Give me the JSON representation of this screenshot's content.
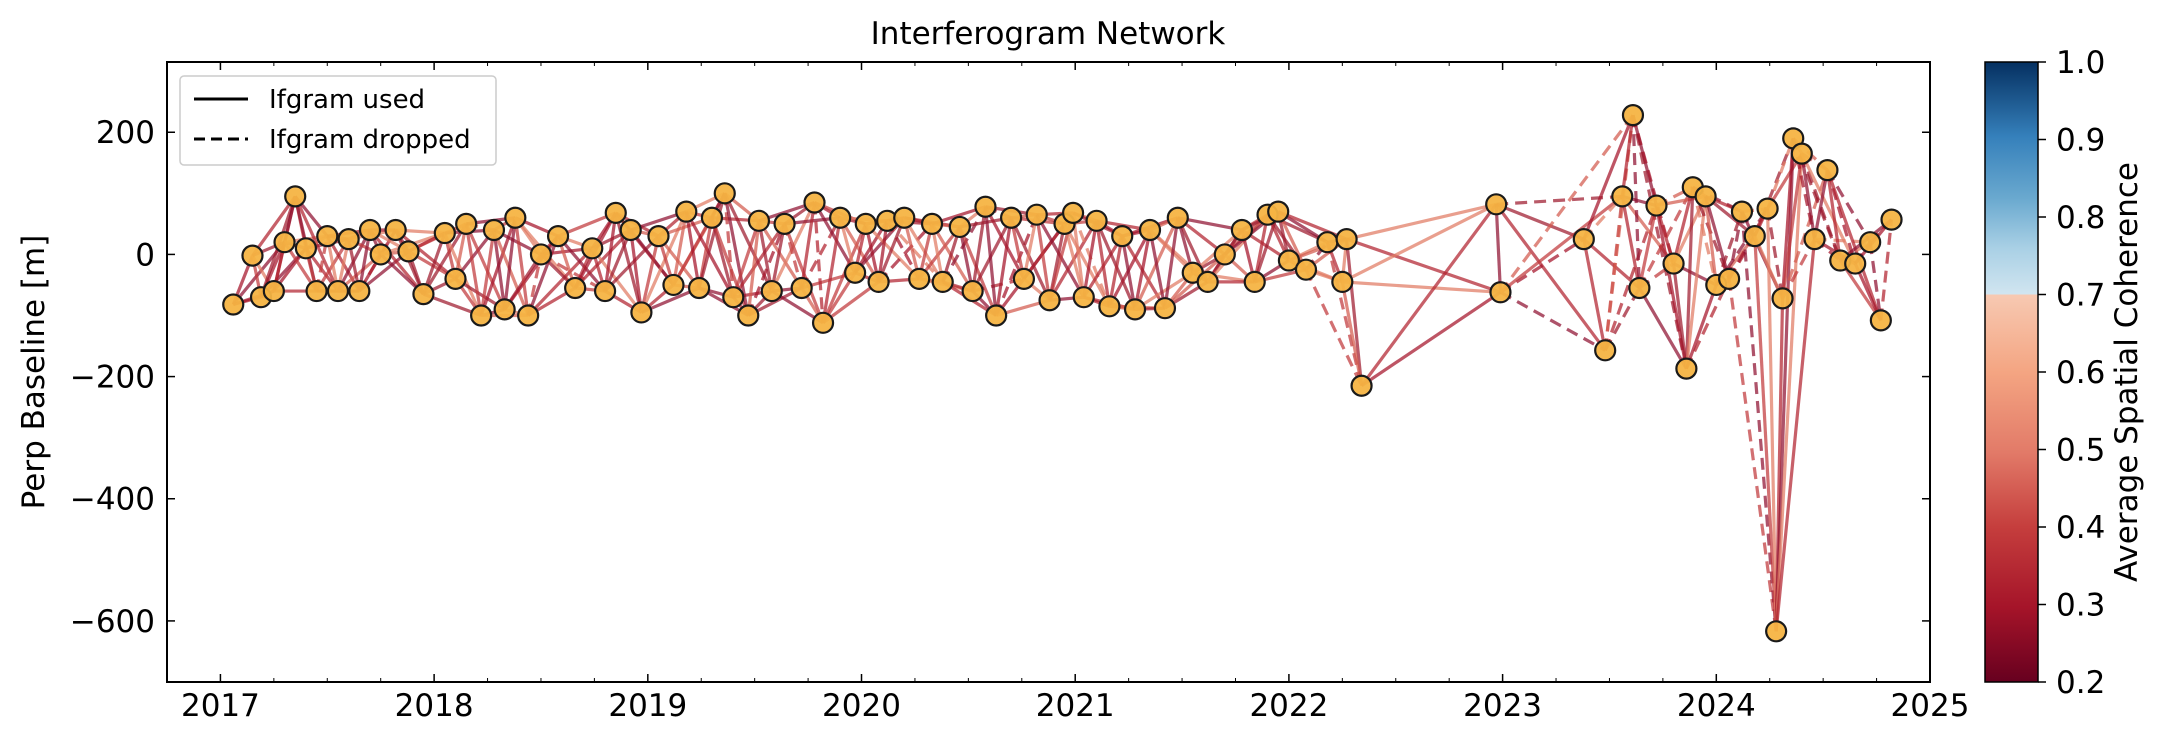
{
  "chart_data": {
    "type": "network",
    "title": "Interferogram Network",
    "xlabel": "",
    "ylabel": "Perp Baseline [m]",
    "xlim": [
      2016.75,
      2025.0
    ],
    "ylim": [
      -700,
      315
    ],
    "x_ticks": [
      2017,
      2018,
      2019,
      2020,
      2021,
      2022,
      2023,
      2024,
      2025
    ],
    "y_ticks": [
      200,
      0,
      -200,
      -400,
      -600
    ],
    "y_tick_labels": [
      "200",
      "0",
      "−200",
      "−400",
      "−600"
    ],
    "legend": {
      "position": "top-left",
      "entries": [
        {
          "label": "Ifgram used",
          "style": "solid"
        },
        {
          "label": "Ifgram dropped",
          "style": "dashed"
        }
      ]
    },
    "colorbar": {
      "label": "Average Spatial Coherence",
      "range": [
        0.2,
        1.0
      ],
      "ticks": [
        "1.0",
        "0.9",
        "0.8",
        "0.7",
        "0.6",
        "0.5",
        "0.4",
        "0.3",
        "0.2"
      ],
      "colormap": "RdBu",
      "visible_range": [
        0.2,
        0.7
      ]
    },
    "node_color": "#f6b443",
    "acquisitions": [
      {
        "x": 2017.06,
        "y": -82
      },
      {
        "x": 2017.15,
        "y": -2
      },
      {
        "x": 2017.19,
        "y": -70
      },
      {
        "x": 2017.25,
        "y": -60
      },
      {
        "x": 2017.3,
        "y": 20
      },
      {
        "x": 2017.35,
        "y": 95
      },
      {
        "x": 2017.4,
        "y": 10
      },
      {
        "x": 2017.45,
        "y": -60
      },
      {
        "x": 2017.5,
        "y": 30
      },
      {
        "x": 2017.55,
        "y": -60
      },
      {
        "x": 2017.6,
        "y": 25
      },
      {
        "x": 2017.65,
        "y": -60
      },
      {
        "x": 2017.7,
        "y": 40
      },
      {
        "x": 2017.75,
        "y": 0
      },
      {
        "x": 2017.82,
        "y": 40
      },
      {
        "x": 2017.88,
        "y": 5
      },
      {
        "x": 2017.95,
        "y": -65
      },
      {
        "x": 2018.05,
        "y": 35
      },
      {
        "x": 2018.1,
        "y": -40
      },
      {
        "x": 2018.15,
        "y": 50
      },
      {
        "x": 2018.22,
        "y": -100
      },
      {
        "x": 2018.28,
        "y": 40
      },
      {
        "x": 2018.33,
        "y": -90
      },
      {
        "x": 2018.38,
        "y": 60
      },
      {
        "x": 2018.44,
        "y": -100
      },
      {
        "x": 2018.5,
        "y": 0
      },
      {
        "x": 2018.58,
        "y": 30
      },
      {
        "x": 2018.66,
        "y": -55
      },
      {
        "x": 2018.74,
        "y": 10
      },
      {
        "x": 2018.8,
        "y": -60
      },
      {
        "x": 2018.85,
        "y": 68
      },
      {
        "x": 2018.92,
        "y": 40
      },
      {
        "x": 2018.97,
        "y": -95
      },
      {
        "x": 2019.05,
        "y": 30
      },
      {
        "x": 2019.12,
        "y": -50
      },
      {
        "x": 2019.18,
        "y": 70
      },
      {
        "x": 2019.24,
        "y": -55
      },
      {
        "x": 2019.3,
        "y": 60
      },
      {
        "x": 2019.36,
        "y": 100
      },
      {
        "x": 2019.4,
        "y": -70
      },
      {
        "x": 2019.47,
        "y": -100
      },
      {
        "x": 2019.52,
        "y": 55
      },
      {
        "x": 2019.58,
        "y": -60
      },
      {
        "x": 2019.64,
        "y": 50
      },
      {
        "x": 2019.72,
        "y": -55
      },
      {
        "x": 2019.78,
        "y": 85
      },
      {
        "x": 2019.82,
        "y": -112
      },
      {
        "x": 2019.9,
        "y": 60
      },
      {
        "x": 2019.97,
        "y": -30
      },
      {
        "x": 2020.02,
        "y": 50
      },
      {
        "x": 2020.08,
        "y": -45
      },
      {
        "x": 2020.12,
        "y": 55
      },
      {
        "x": 2020.2,
        "y": 60
      },
      {
        "x": 2020.27,
        "y": -40
      },
      {
        "x": 2020.33,
        "y": 50
      },
      {
        "x": 2020.38,
        "y": -45
      },
      {
        "x": 2020.46,
        "y": 45
      },
      {
        "x": 2020.52,
        "y": -60
      },
      {
        "x": 2020.58,
        "y": 78
      },
      {
        "x": 2020.63,
        "y": -100
      },
      {
        "x": 2020.7,
        "y": 60
      },
      {
        "x": 2020.76,
        "y": -40
      },
      {
        "x": 2020.82,
        "y": 65
      },
      {
        "x": 2020.88,
        "y": -75
      },
      {
        "x": 2020.95,
        "y": 50
      },
      {
        "x": 2020.99,
        "y": 68
      },
      {
        "x": 2021.04,
        "y": -70
      },
      {
        "x": 2021.1,
        "y": 55
      },
      {
        "x": 2021.16,
        "y": -85
      },
      {
        "x": 2021.22,
        "y": 30
      },
      {
        "x": 2021.28,
        "y": -90
      },
      {
        "x": 2021.35,
        "y": 40
      },
      {
        "x": 2021.42,
        "y": -88
      },
      {
        "x": 2021.48,
        "y": 60
      },
      {
        "x": 2021.55,
        "y": -30
      },
      {
        "x": 2021.62,
        "y": -45
      },
      {
        "x": 2021.7,
        "y": 0
      },
      {
        "x": 2021.78,
        "y": 40
      },
      {
        "x": 2021.84,
        "y": -45
      },
      {
        "x": 2021.9,
        "y": 65
      },
      {
        "x": 2021.95,
        "y": 70
      },
      {
        "x": 2022.0,
        "y": -10
      },
      {
        "x": 2022.08,
        "y": -25
      },
      {
        "x": 2022.18,
        "y": 20
      },
      {
        "x": 2022.27,
        "y": 25
      },
      {
        "x": 2022.25,
        "y": -45
      },
      {
        "x": 2022.34,
        "y": -215
      },
      {
        "x": 2022.97,
        "y": 82
      },
      {
        "x": 2022.99,
        "y": -62
      },
      {
        "x": 2023.38,
        "y": 25
      },
      {
        "x": 2023.48,
        "y": -157
      },
      {
        "x": 2023.56,
        "y": 95
      },
      {
        "x": 2023.61,
        "y": 228
      },
      {
        "x": 2023.64,
        "y": -55
      },
      {
        "x": 2023.72,
        "y": 80
      },
      {
        "x": 2023.8,
        "y": -15
      },
      {
        "x": 2023.86,
        "y": -187
      },
      {
        "x": 2023.89,
        "y": 110
      },
      {
        "x": 2023.95,
        "y": 95
      },
      {
        "x": 2024.0,
        "y": -50
      },
      {
        "x": 2024.06,
        "y": -40
      },
      {
        "x": 2024.12,
        "y": 70
      },
      {
        "x": 2024.18,
        "y": 30
      },
      {
        "x": 2024.24,
        "y": 75
      },
      {
        "x": 2024.28,
        "y": -617
      },
      {
        "x": 2024.31,
        "y": -72
      },
      {
        "x": 2024.36,
        "y": 190
      },
      {
        "x": 2024.4,
        "y": 165
      },
      {
        "x": 2024.46,
        "y": 25
      },
      {
        "x": 2024.52,
        "y": 138
      },
      {
        "x": 2024.58,
        "y": -10
      },
      {
        "x": 2024.65,
        "y": -15
      },
      {
        "x": 2024.72,
        "y": 20
      },
      {
        "x": 2024.77,
        "y": -108
      },
      {
        "x": 2024.82,
        "y": 57
      }
    ]
  }
}
